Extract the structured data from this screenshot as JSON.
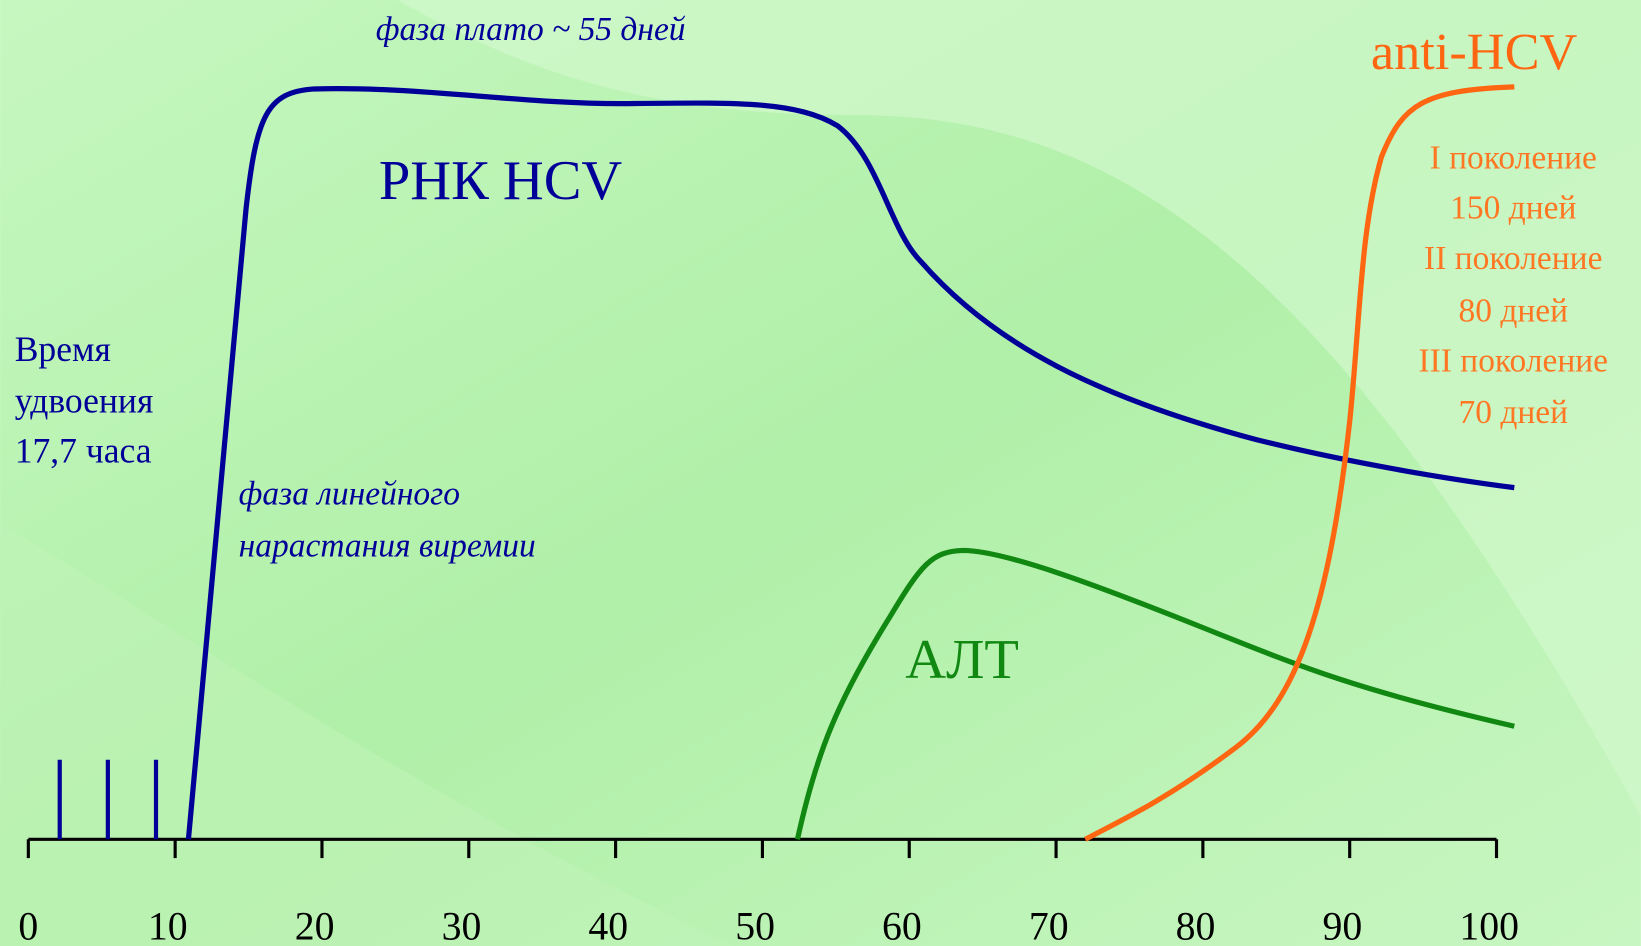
{
  "plateau_label": "фаза плато ~ 55 дней",
  "rna_label": "РНК HCV",
  "doubling_label": [
    "Время",
    "удвоения",
    "17,7 часа"
  ],
  "linear_label": [
    "фаза линейного",
    "нарастания виремии"
  ],
  "alt_label": "АЛТ",
  "anti_hcv_label": "anti-HCV",
  "generations": [
    "I поколение",
    "150 дней",
    "II поколение",
    "80 дней",
    "III поколение",
    "70 дней"
  ],
  "x_axis": {
    "ticks": [
      "0",
      "10",
      "20",
      "30",
      "40",
      "50",
      "60",
      "70",
      "80",
      "90",
      "100"
    ]
  }
}
